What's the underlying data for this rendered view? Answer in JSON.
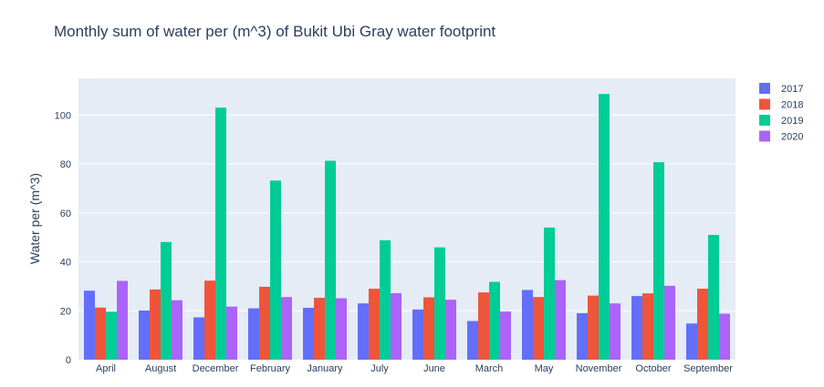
{
  "chart_data": {
    "type": "bar",
    "title": "Monthly sum of water per (m^3) of Bukit Ubi Gray water footprint",
    "xlabel": "",
    "ylabel": "Water per (m^3)",
    "ylim": [
      0,
      115
    ],
    "yticks": [
      0,
      20,
      40,
      60,
      80,
      100
    ],
    "grid": true,
    "legend_position": "top-right",
    "categories": [
      "April",
      "August",
      "December",
      "February",
      "January",
      "July",
      "June",
      "March",
      "May",
      "November",
      "October",
      "September"
    ],
    "series": [
      {
        "name": "2017",
        "color": "#636efa",
        "values": [
          28.2,
          20.1,
          17.3,
          21.0,
          21.2,
          23.0,
          20.5,
          15.8,
          28.5,
          19.0,
          26.0,
          14.8
        ]
      },
      {
        "name": "2018",
        "color": "#ef553b",
        "values": [
          21.3,
          28.7,
          32.3,
          29.8,
          25.3,
          29.0,
          25.5,
          27.5,
          25.6,
          26.2,
          27.1,
          29.0
        ]
      },
      {
        "name": "2019",
        "color": "#00cc96",
        "values": [
          19.6,
          48.1,
          103.0,
          73.2,
          81.3,
          48.8,
          45.9,
          31.8,
          54.0,
          108.6,
          80.7,
          51.0
        ]
      },
      {
        "name": "2020",
        "color": "#ab63fa",
        "values": [
          32.2,
          24.3,
          21.7,
          25.6,
          25.1,
          27.2,
          24.5,
          19.7,
          32.5,
          23.0,
          30.2,
          18.8
        ]
      }
    ]
  }
}
